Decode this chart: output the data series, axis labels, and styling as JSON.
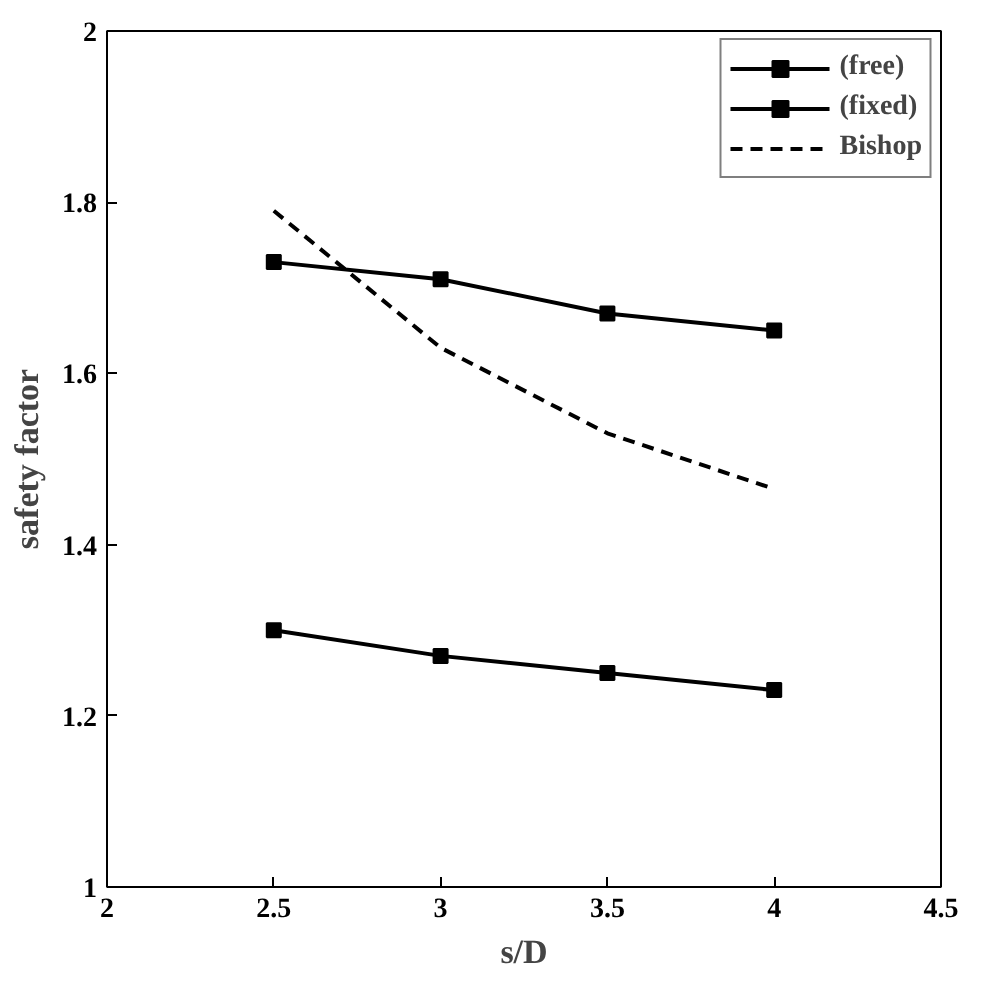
{
  "chart_data": {
    "type": "line",
    "xlabel": "s/D",
    "ylabel": "safety factor",
    "x": [
      2.5,
      3,
      3.5,
      4
    ],
    "xlim": [
      2,
      4.5
    ],
    "xticks": [
      2,
      2.5,
      3,
      3.5,
      4,
      {
        "value": 4.5,
        "label": "4.5"
      }
    ],
    "ylim": [
      1,
      2
    ],
    "yticks": [
      1,
      1.2,
      1.4,
      1.6,
      1.8,
      2
    ],
    "grid": false,
    "legend": "top right",
    "series": [
      {
        "name": "(free)",
        "color": "#000000",
        "values": [
          1.3,
          1.27,
          1.25,
          1.23
        ],
        "marker": "square",
        "line_style": "solid"
      },
      {
        "name": "(fixed)",
        "color": "#000000",
        "values": [
          1.73,
          1.71,
          1.67,
          1.65
        ],
        "marker": "square",
        "line_style": "solid"
      },
      {
        "name": "Bishop",
        "color": "#000000",
        "values": [
          1.79,
          1.63,
          1.53,
          1.465
        ],
        "marker": "none",
        "line_style": "dashed"
      }
    ]
  }
}
